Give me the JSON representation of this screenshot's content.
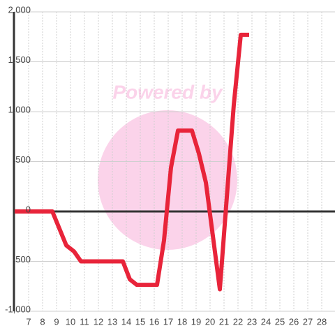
{
  "chart_data": {
    "type": "line",
    "watermark": "Powered by",
    "x": [
      6,
      8.7,
      9.7,
      10.25,
      10.75,
      13.75,
      14.25,
      14.75,
      16.2,
      16.7,
      17.2,
      17.7,
      18.7,
      19.2,
      19.7,
      20.7,
      21.7,
      22.2,
      22.8
    ],
    "series": [
      {
        "color": "#e8243a",
        "values": [
          0,
          0,
          -340,
          -400,
          -500,
          -500,
          -680,
          -735,
          -735,
          -290,
          440,
          810,
          810,
          580,
          290,
          -780,
          1070,
          1770,
          1770
        ]
      }
    ],
    "xlim": [
      5.95,
      28.95
    ],
    "xticks": [
      7,
      8,
      9,
      10,
      11,
      12,
      13,
      14,
      15,
      16,
      17,
      18,
      19,
      20,
      21,
      22,
      23,
      24,
      25,
      26,
      27,
      28
    ],
    "ylim": [
      -1000,
      2000
    ],
    "yticks": [
      {
        "value": -1000,
        "label": "-1,000"
      },
      -500,
      0,
      500,
      {
        "value": 1000,
        "label": "1,000"
      },
      {
        "value": 1500,
        "label": "1,500"
      },
      {
        "value": 2000,
        "label": "2,000"
      }
    ],
    "grid": true
  }
}
